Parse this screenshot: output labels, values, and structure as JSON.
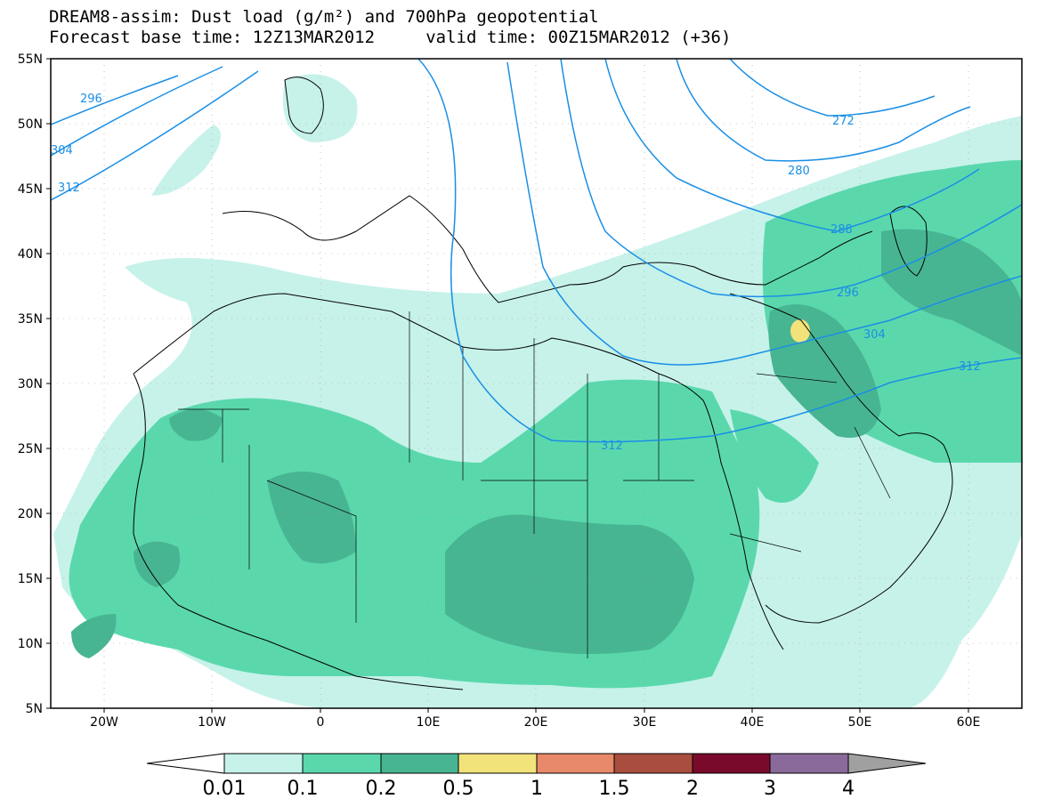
{
  "title": {
    "line1": "DREAM8-assim: Dust load (g/m²) and 700hPa geopotential",
    "line2": "Forecast base time: 12Z13MAR2012     valid time: 00Z15MAR2012 (+36)"
  },
  "axes": {
    "lat_labels": [
      "55N",
      "50N",
      "45N",
      "40N",
      "35N",
      "30N",
      "25N",
      "20N",
      "15N",
      "10N",
      "5N"
    ],
    "lon_labels": [
      "20W",
      "10W",
      "0",
      "10E",
      "20E",
      "30E",
      "40E",
      "50E",
      "60E"
    ],
    "lat_range": [
      5,
      55
    ],
    "lon_range": [
      -25,
      65
    ]
  },
  "colorbar": {
    "labels": [
      "0.01",
      "0.1",
      "0.2",
      "0.5",
      "1",
      "1.5",
      "2",
      "3",
      "4"
    ],
    "colors": [
      "#c6f2ea",
      "#5ad8ac",
      "#48b592",
      "#f2e27a",
      "#e8896a",
      "#a94e3e",
      "#7a0a2b",
      "#8a6a9a"
    ],
    "under_color": "#ffffff",
    "over_color": "#a0a0a0"
  },
  "contours": {
    "labels": [
      "296",
      "304",
      "312",
      "272",
      "280",
      "288",
      "296",
      "304",
      "312",
      "312"
    ],
    "color": "#1a8fe6"
  },
  "colors": {
    "land_outline": "#000000",
    "background": "#ffffff"
  }
}
